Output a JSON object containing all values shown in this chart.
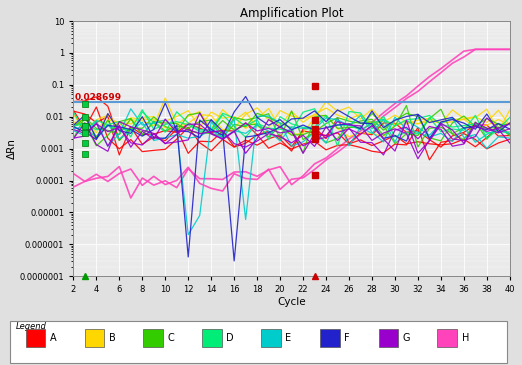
{
  "title": "Amplification Plot",
  "xlabel": "Cycle",
  "ylabel": "ΔRn",
  "threshold": 0.028699,
  "threshold_label": "0.028699",
  "threshold_color": "#5B9BD5",
  "annotation_color": "#CC0000",
  "legend_labels": [
    "A",
    "B",
    "C",
    "D",
    "E",
    "F",
    "G",
    "H"
  ],
  "legend_colors": [
    "#FF0000",
    "#FFD700",
    "#33CC00",
    "#00EE77",
    "#00CCCC",
    "#2222CC",
    "#9900CC",
    "#FF44BB"
  ],
  "bg_color": "#e0e0e0",
  "plot_bg": "#eaeaea",
  "grid_color": "#ffffff",
  "red_sq_color": "#CC0000",
  "tri_green": "#009900",
  "tri_red": "#CC0000",
  "figsize": [
    5.22,
    3.65
  ],
  "dpi": 100
}
